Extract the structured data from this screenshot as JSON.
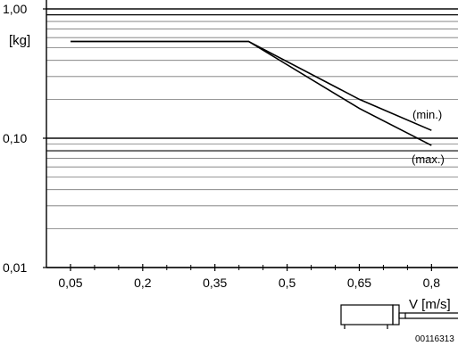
{
  "chart_data": {
    "type": "line",
    "title": "",
    "xlabel": "V [m/s]",
    "ylabel": "[kg]",
    "x_scale": "linear",
    "y_scale": "log",
    "xlim": [
      0.05,
      0.8
    ],
    "ylim": [
      0.01,
      1.0
    ],
    "x_ticks": [
      {
        "value": 0.05,
        "label": "0,05"
      },
      {
        "value": 0.2,
        "label": "0,2"
      },
      {
        "value": 0.35,
        "label": "0,35"
      },
      {
        "value": 0.5,
        "label": "0,5"
      },
      {
        "value": 0.65,
        "label": "0,65"
      },
      {
        "value": 0.8,
        "label": "0,8"
      }
    ],
    "y_ticks": [
      {
        "value": 1.0,
        "label": "1,00"
      },
      {
        "value": 0.1,
        "label": "0,10"
      },
      {
        "value": 0.01,
        "label": "0,01"
      }
    ],
    "grid": true,
    "series": [
      {
        "name": "(min.)",
        "x": [
          0.05,
          0.42,
          0.65,
          0.8
        ],
        "y": [
          0.56,
          0.56,
          0.2,
          0.115
        ]
      },
      {
        "name": "(max.)",
        "x": [
          0.05,
          0.42,
          0.65,
          0.8
        ],
        "y": [
          0.56,
          0.56,
          0.17,
          0.088
        ]
      }
    ],
    "reference_lines": [
      0.9,
      0.08
    ],
    "figure_code": "00116313"
  }
}
